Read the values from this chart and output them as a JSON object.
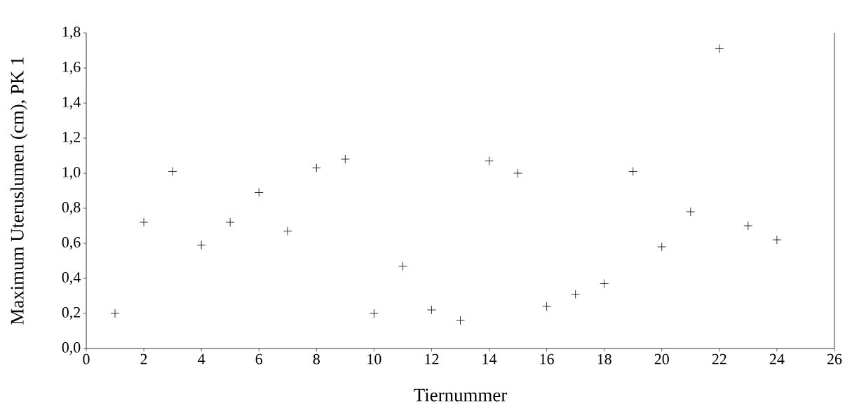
{
  "chart_data": {
    "type": "scatter",
    "xlabel": "Tiernummer",
    "ylabel": "Maximum Uteruslumen (cm), PK 1",
    "x": [
      1,
      2,
      3,
      4,
      5,
      6,
      7,
      8,
      9,
      10,
      11,
      12,
      13,
      14,
      15,
      16,
      17,
      18,
      19,
      20,
      21,
      22,
      23,
      24
    ],
    "values": [
      0.2,
      0.72,
      1.01,
      0.59,
      0.72,
      0.89,
      0.67,
      1.03,
      1.08,
      0.2,
      0.47,
      0.22,
      0.16,
      1.07,
      1.0,
      0.24,
      0.31,
      0.37,
      1.01,
      0.58,
      0.78,
      1.71,
      0.7,
      0.62
    ],
    "color": "#000000",
    "marker": "cross",
    "xlim": [
      0,
      26
    ],
    "xticks": [
      0,
      2,
      4,
      6,
      8,
      10,
      12,
      14,
      16,
      18,
      20,
      22,
      24,
      26
    ],
    "ylim": [
      0,
      1.8
    ],
    "yticks": [
      {
        "value": 0,
        "label": "0,0"
      },
      {
        "value": 0.2,
        "label": "0,2"
      },
      {
        "value": 0.4,
        "label": "0,4"
      },
      {
        "value": 0.6,
        "label": "0,6"
      },
      {
        "value": 0.8,
        "label": "0,8"
      },
      {
        "value": 1.0,
        "label": "1,0"
      },
      {
        "value": 1.2,
        "label": "1,2"
      },
      {
        "value": 1.4,
        "label": "1,4"
      },
      {
        "value": 1.6,
        "label": "1,6"
      },
      {
        "value": 1.8,
        "label": "1,8"
      }
    ]
  }
}
